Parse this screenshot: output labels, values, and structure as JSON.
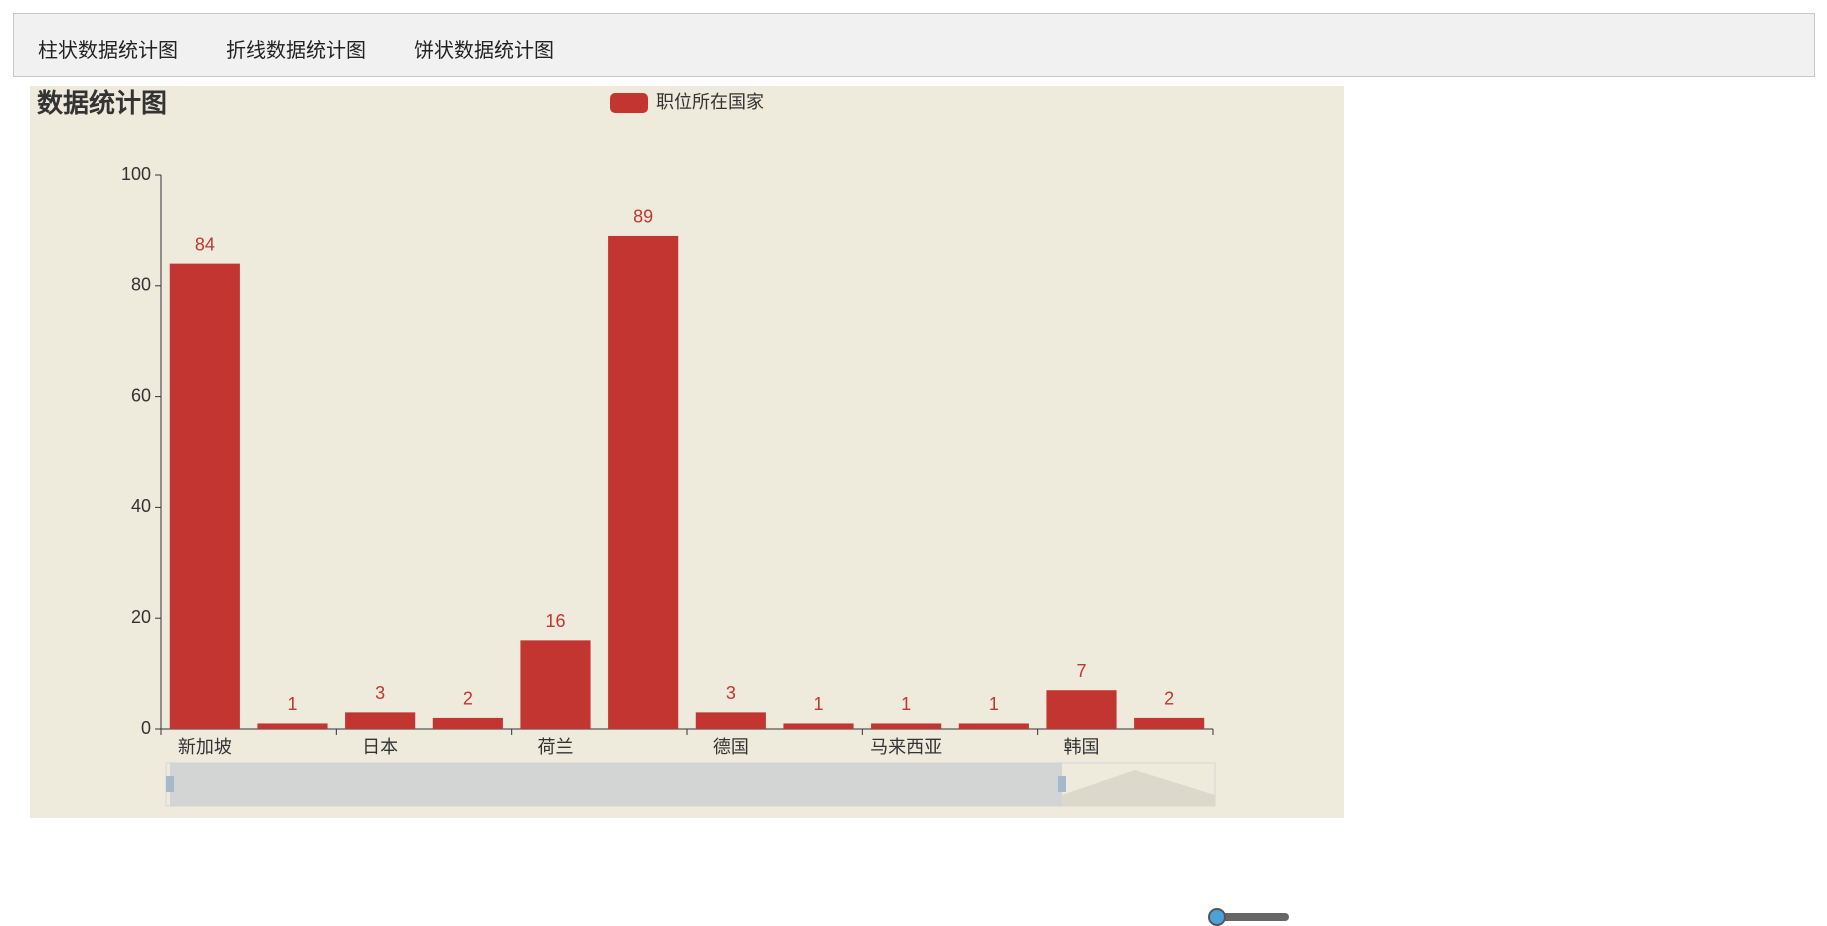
{
  "tabs": [
    "柱状数据统计图",
    "折线数据统计图",
    "饼状数据统计图"
  ],
  "chart_data": {
    "type": "bar",
    "title": "数据统计图",
    "categories": [
      "新加坡",
      null,
      "日本",
      null,
      "荷兰",
      null,
      "德国",
      null,
      "马来西亚",
      null,
      "韩国",
      null
    ],
    "series": [
      {
        "name": "职位所在国家",
        "color": "#c23531",
        "values": [
          84,
          1,
          3,
          2,
          16,
          89,
          3,
          1,
          1,
          1,
          7,
          2
        ]
      }
    ],
    "ylim": [
      0,
      100
    ],
    "yticks": [
      0,
      20,
      40,
      60,
      80,
      100
    ],
    "grid": false
  }
}
